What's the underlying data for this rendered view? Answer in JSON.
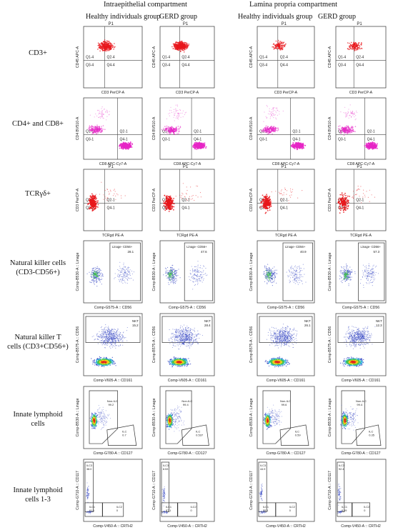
{
  "headers": {
    "intraepithelial": "Intraepithelial compartment",
    "lamina_propria": "Lamina propria compartment",
    "healthy_1": "Healthy individuals group",
    "gerd_1": "GERD group",
    "healthy_2": "Healthy individuals group",
    "gerd_2": "GERD group"
  },
  "row_labels": [
    [
      "CD3+"
    ],
    [
      "CD4+ and CD8+"
    ],
    [
      "TCRγδ+"
    ],
    [
      "Natural killer cells",
      "(CD3-CD56+)"
    ],
    [
      "Natural killer T",
      "cells (CD3+CD56+)"
    ],
    [
      "Innate lymphoid",
      "cells"
    ],
    [
      "Innate lymphoid",
      "cells 1-3"
    ]
  ],
  "rows": [
    {
      "kind": "quad",
      "color": "#e8161b",
      "xlabel": "CD3 PerCP-A",
      "ylabel": "CD45 APC-A",
      "title": "P1",
      "quads": [
        "Q1-4",
        "Q2-4",
        "Q3-4",
        "Q4-4"
      ]
    },
    {
      "kind": "quad",
      "color": "#e626c6",
      "xlabel": "CD8 APC-Cy7-A",
      "ylabel": "CD4 BV510-A",
      "title": "",
      "quads": [
        "Q1-1",
        "Q2-1",
        "Q3-1",
        "Q4-1"
      ]
    },
    {
      "kind": "quad",
      "color": "#e8161b",
      "xlabel": "TCRgd PE-A",
      "ylabel": "CD3 PerCP-A",
      "title": "P1",
      "quads": [
        "Q1-1",
        "Q2-1",
        "Q3-1",
        "Q4-1"
      ]
    },
    {
      "kind": "gate",
      "color": "#2a3cc0",
      "xlabel": "Comp-G575-A :: CD56",
      "ylabel": "Comp-B530-A :: Linage",
      "gate_label": "Linage- CD56+",
      "values": [
        "28.1",
        "47.6",
        "40.9",
        "57.3"
      ]
    },
    {
      "kind": "nkt",
      "color": "#2a3cc0",
      "xlabel": "Comp-V605-A :: CD161",
      "ylabel": "Comp-B575-A :: CD56",
      "gate_label": "NKT",
      "values": [
        "15.2",
        "28.4",
        "26.1",
        "12.3"
      ]
    },
    {
      "kind": "ilc",
      "color": "#2a3cc0",
      "xlabel": "Comp-G780-A :: CD127",
      "ylabel": "Comp-B530-A :: Linage",
      "labels": [
        "Non-ILC",
        "ILC"
      ],
      "values": [
        [
          "99.2",
          "0.7"
        ],
        [
          "99.4",
          "0.537"
        ],
        [
          "99.6",
          "0.59"
        ],
        [
          "99.4",
          "0.35"
        ]
      ]
    },
    {
      "kind": "ilc13",
      "color": "#2a3cc0",
      "xlabel": "Comp-V450-A :: CRTH2",
      "ylabel": "Comp-G710-A :: CD117",
      "labels": [
        "ILC3",
        "ILC1",
        "ILC2"
      ],
      "values": [
        [
          "38.0",
          "61.1",
          "0"
        ],
        [
          "8.53",
          "87.1",
          "0"
        ],
        [
          "44.9",
          "55.1",
          "0"
        ],
        [
          "92.4",
          "9.09",
          "0"
        ]
      ]
    }
  ]
}
